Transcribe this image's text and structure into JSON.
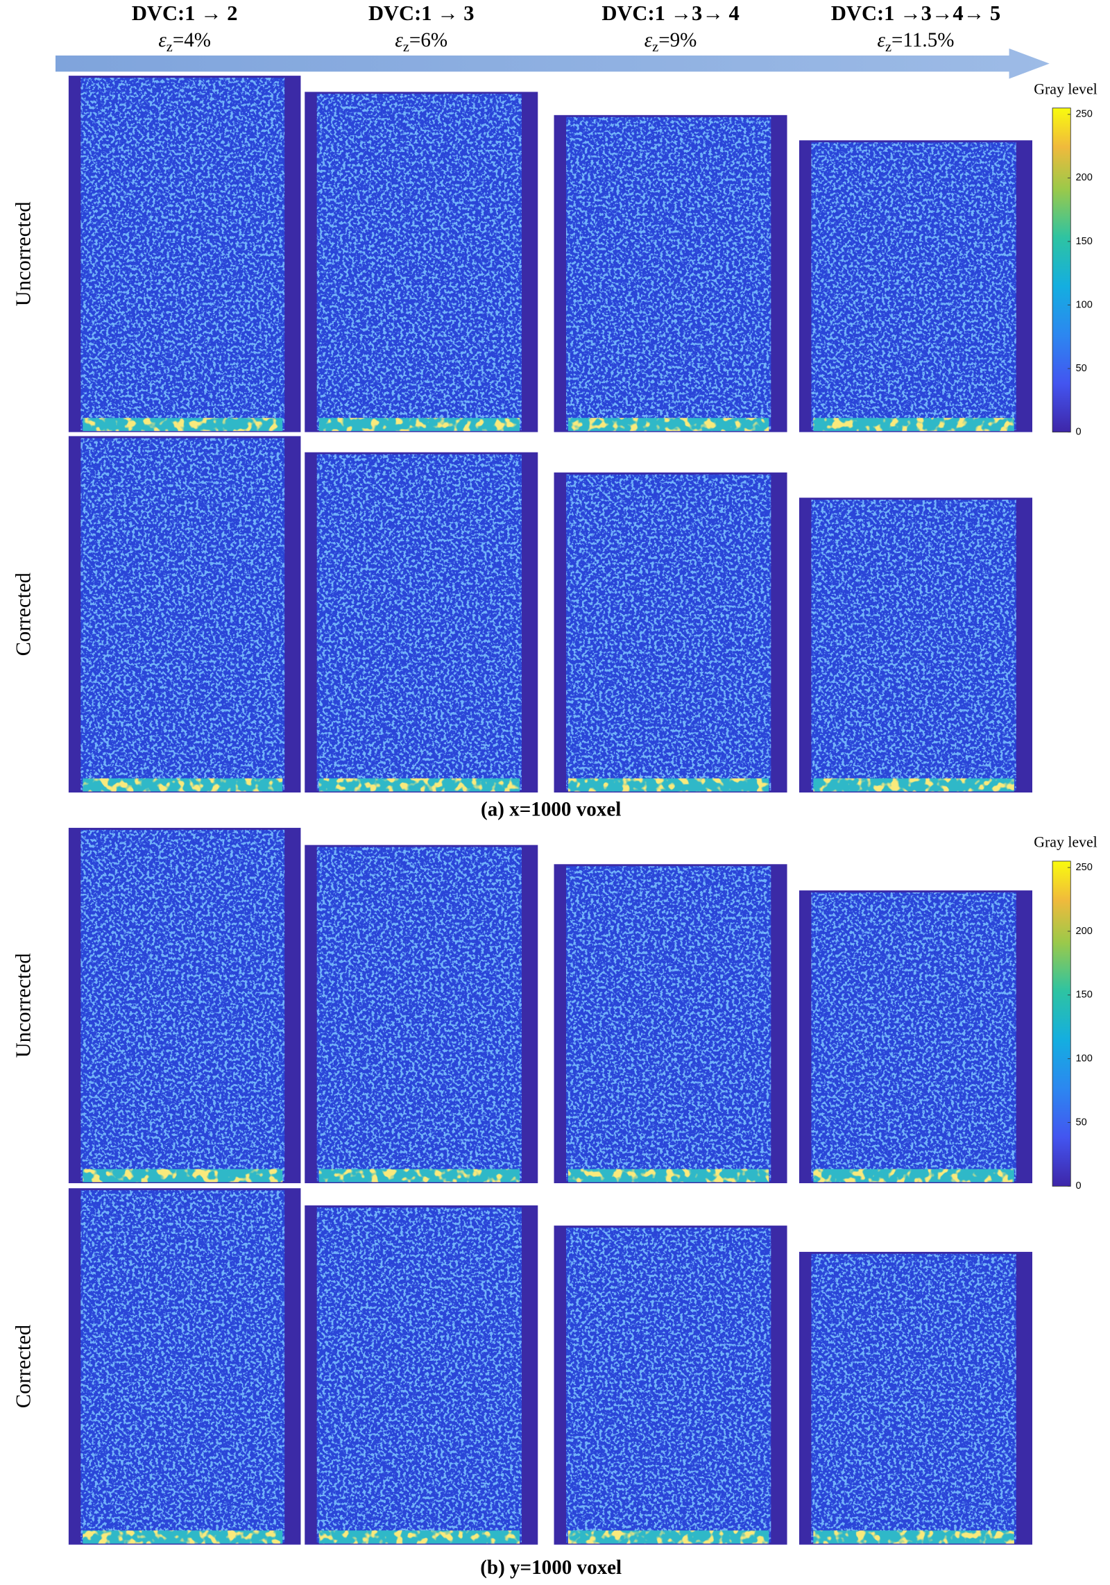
{
  "columns": [
    {
      "title": "DVC:1 → 2",
      "strain_symbol": "ε",
      "strain_subscript": "z",
      "strain_value": "=4%"
    },
    {
      "title": "DVC:1 → 3",
      "strain_symbol": "ε",
      "strain_subscript": "z",
      "strain_value": "=6%"
    },
    {
      "title": "DVC:1 →3→ 4",
      "strain_symbol": "ε",
      "strain_subscript": "z",
      "strain_value": "=9%"
    },
    {
      "title": "DVC:1 →3→4→ 5",
      "strain_symbol": "ε",
      "strain_subscript": "z",
      "strain_value": "=11.5%"
    }
  ],
  "row_labels": [
    "Uncorrected",
    "Corrected"
  ],
  "panels": [
    {
      "caption": "(a) x=1000 voxel",
      "colorbar": {
        "label": "Gray level",
        "ylim": [
          0,
          255
        ],
        "yticks": [
          0,
          50,
          100,
          150,
          200,
          250
        ]
      }
    },
    {
      "caption": "(b) y=1000 voxel",
      "colorbar": {
        "label": "Gray level",
        "ylim": [
          0,
          255
        ],
        "yticks": [
          0,
          50,
          100,
          150,
          200,
          250
        ]
      }
    }
  ]
}
